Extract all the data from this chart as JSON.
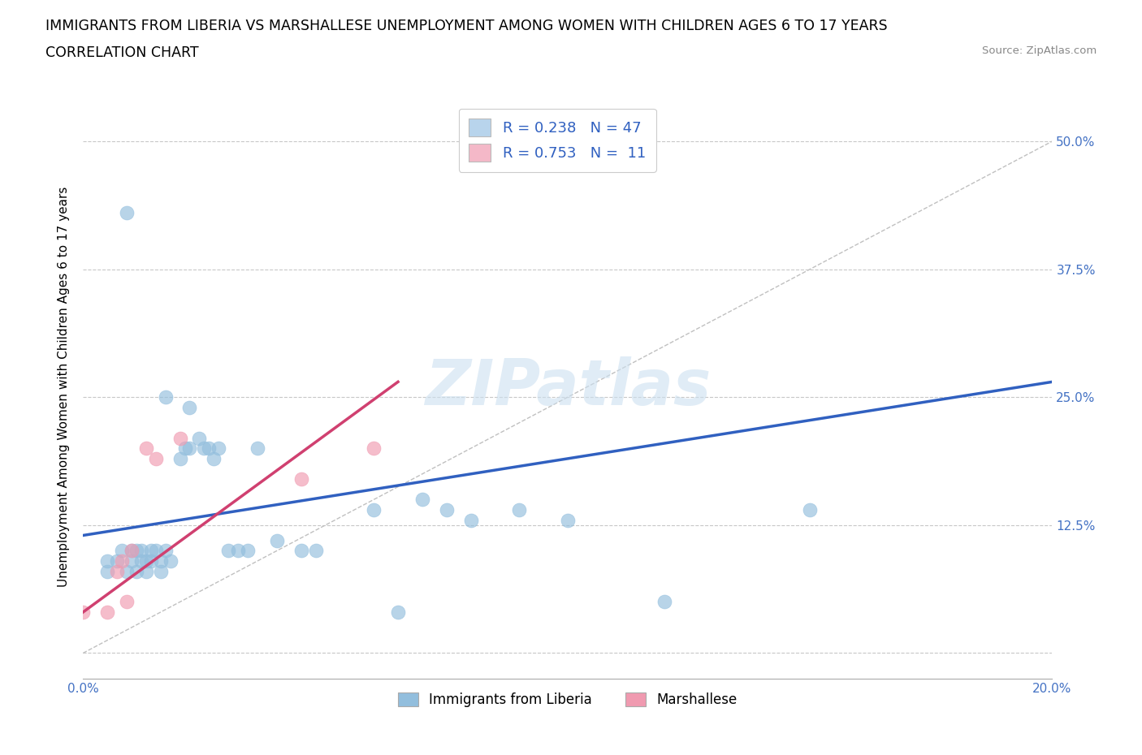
{
  "title_line1": "IMMIGRANTS FROM LIBERIA VS MARSHALLESE UNEMPLOYMENT AMONG WOMEN WITH CHILDREN AGES 6 TO 17 YEARS",
  "title_line2": "CORRELATION CHART",
  "source_text": "Source: ZipAtlas.com",
  "ylabel": "Unemployment Among Women with Children Ages 6 to 17 years",
  "xlim": [
    0.0,
    0.2
  ],
  "ylim": [
    -0.025,
    0.545
  ],
  "xticks": [
    0.0,
    0.05,
    0.1,
    0.15,
    0.2
  ],
  "xtick_labels": [
    "0.0%",
    "",
    "",
    "",
    "20.0%"
  ],
  "yticks": [
    0.0,
    0.125,
    0.25,
    0.375,
    0.5
  ],
  "ytick_labels": [
    "",
    "12.5%",
    "25.0%",
    "37.5%",
    "50.0%"
  ],
  "watermark": "ZIPatlas",
  "legend_entries": [
    {
      "label": "Immigrants from Liberia",
      "R": "0.238",
      "N": "47",
      "color": "#b8d4ec"
    },
    {
      "label": "Marshallese",
      "R": "0.753",
      "N": "11",
      "color": "#f4b8c8"
    }
  ],
  "blue_scatter_x": [
    0.005,
    0.005,
    0.007,
    0.008,
    0.009,
    0.01,
    0.01,
    0.011,
    0.011,
    0.012,
    0.012,
    0.013,
    0.013,
    0.014,
    0.014,
    0.015,
    0.016,
    0.016,
    0.017,
    0.018,
    0.02,
    0.021,
    0.022,
    0.024,
    0.025,
    0.026,
    0.027,
    0.028,
    0.03,
    0.032,
    0.034,
    0.036,
    0.04,
    0.045,
    0.048,
    0.06,
    0.065,
    0.07,
    0.075,
    0.08,
    0.09,
    0.1,
    0.12,
    0.15,
    0.017,
    0.022,
    0.009
  ],
  "blue_scatter_y": [
    0.08,
    0.09,
    0.09,
    0.1,
    0.08,
    0.09,
    0.1,
    0.08,
    0.1,
    0.09,
    0.1,
    0.08,
    0.09,
    0.1,
    0.09,
    0.1,
    0.09,
    0.08,
    0.1,
    0.09,
    0.19,
    0.2,
    0.2,
    0.21,
    0.2,
    0.2,
    0.19,
    0.2,
    0.1,
    0.1,
    0.1,
    0.2,
    0.11,
    0.1,
    0.1,
    0.14,
    0.04,
    0.15,
    0.14,
    0.13,
    0.14,
    0.13,
    0.05,
    0.14,
    0.25,
    0.24,
    0.43
  ],
  "pink_scatter_x": [
    0.0,
    0.005,
    0.007,
    0.008,
    0.009,
    0.01,
    0.013,
    0.015,
    0.02,
    0.045,
    0.06
  ],
  "pink_scatter_y": [
    0.04,
    0.04,
    0.08,
    0.09,
    0.05,
    0.1,
    0.2,
    0.19,
    0.21,
    0.17,
    0.2
  ],
  "blue_line_x": [
    0.0,
    0.2
  ],
  "blue_line_y": [
    0.115,
    0.265
  ],
  "pink_line_x": [
    0.0,
    0.065
  ],
  "pink_line_y": [
    0.04,
    0.265
  ],
  "dashed_line_x": [
    0.0,
    0.2
  ],
  "dashed_line_y": [
    0.0,
    0.5
  ],
  "blue_scatter_color": "#92bedd",
  "blue_scatter_edge": "#92bedd",
  "pink_scatter_color": "#f09ab0",
  "pink_scatter_edge": "#f09ab0",
  "blue_line_color": "#3060c0",
  "pink_line_color": "#d04070",
  "dashed_line_color": "#c0c0c0",
  "title_fontsize": 12.5,
  "axis_label_fontsize": 11,
  "tick_fontsize": 11,
  "legend_fontsize": 13
}
